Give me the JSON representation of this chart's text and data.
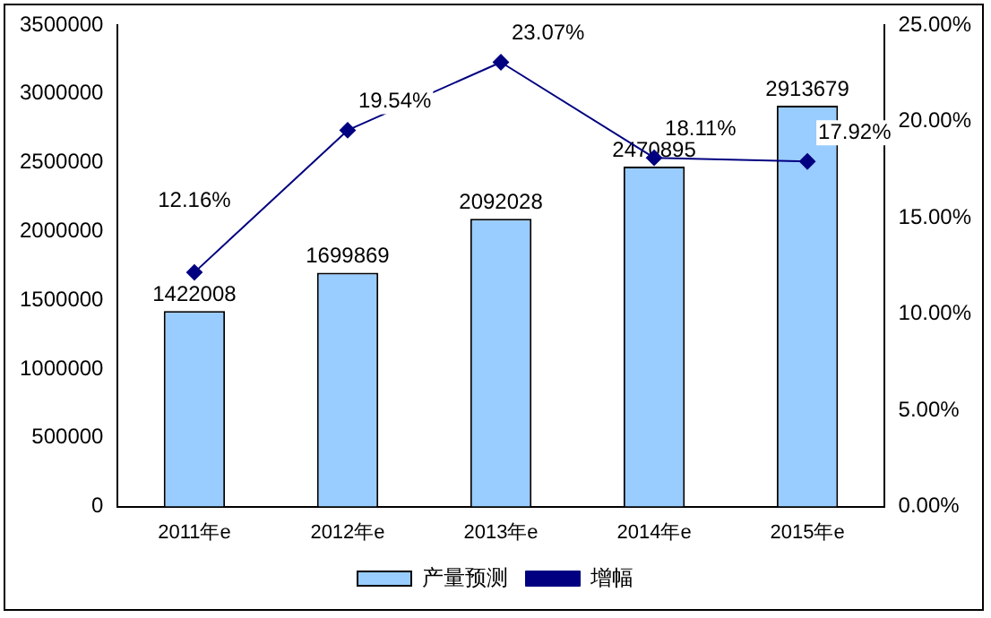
{
  "chart_data": {
    "type": "bar",
    "categories": [
      "2011年e",
      "2012年e",
      "2013年e",
      "2014年e",
      "2015年e"
    ],
    "series": [
      {
        "name": "产量预测",
        "color": "#99ccff",
        "values": [
          1422008,
          1699869,
          2092028,
          2470895,
          2913679
        ]
      },
      {
        "name": "增幅",
        "type": "line",
        "axis": "y2",
        "color": "#000080",
        "values": [
          12.16,
          19.54,
          23.07,
          18.11,
          17.92
        ],
        "value_labels": [
          "12.16%",
          "19.54%",
          "23.07%",
          "18.11%",
          "17.92%"
        ]
      }
    ],
    "data_labels": true,
    "ylim": [
      0,
      3500000
    ],
    "yticks": [
      0,
      500000,
      1000000,
      1500000,
      2000000,
      2500000,
      3000000,
      3500000
    ],
    "y2lim": [
      0,
      25
    ],
    "y2ticks": [
      {
        "value": 0,
        "label": "0.00%"
      },
      {
        "value": 5,
        "label": "5.00%"
      },
      {
        "value": 10,
        "label": "10.00%"
      },
      {
        "value": 15,
        "label": "15.00%"
      },
      {
        "value": 20,
        "label": "20.00%"
      },
      {
        "value": 25,
        "label": "25.00%"
      }
    ],
    "grid": false,
    "legend": "bottom",
    "marker": "diamond",
    "line_style": "solid"
  }
}
